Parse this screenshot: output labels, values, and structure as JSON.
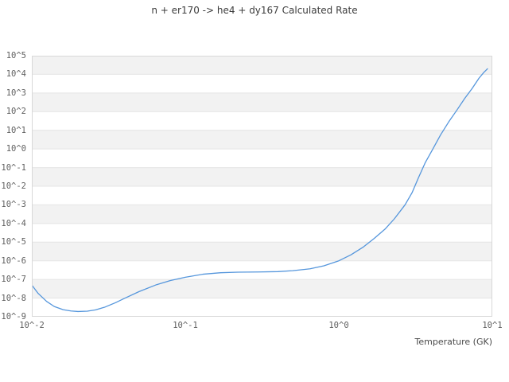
{
  "title": "n + er170 -> he4 + dy167 Calculated Rate",
  "x_axis": {
    "label": "Temperature (GK)",
    "ticks": [
      "10^-2",
      "10^-1",
      "10^0",
      "10^1"
    ]
  },
  "y_axis": {
    "ticks": [
      "10^5",
      "10^4",
      "10^3",
      "10^2",
      "10^1",
      "10^0",
      "10^-1",
      "10^-2",
      "10^-3",
      "10^-4",
      "10^-5",
      "10^-6",
      "10^-7",
      "10^-8",
      "10^-9"
    ]
  },
  "colors": {
    "line": "#5596dc",
    "band": "#f2f2f2",
    "grid": "#e4e4e4",
    "border": "#d8d8d8",
    "tick_text": "#606060",
    "title_text": "#3c3c3c"
  },
  "chart_data": {
    "type": "line",
    "title": "n + er170 -> he4 + dy167 Calculated Rate",
    "xlabel": "Temperature (GK)",
    "ylabel": "",
    "xscale": "log",
    "yscale": "log",
    "xlim": [
      0.01,
      10
    ],
    "ylim": [
      1e-09,
      100000.0
    ],
    "grid": "horizontal-decades, alternating shaded bands",
    "legend": "none",
    "series_name": "calculated rate",
    "x_gk": [
      0.01,
      0.011,
      0.0125,
      0.014,
      0.016,
      0.018,
      0.02,
      0.023,
      0.026,
      0.03,
      0.035,
      0.04,
      0.05,
      0.065,
      0.08,
      0.1,
      0.13,
      0.17,
      0.22,
      0.3,
      0.4,
      0.5,
      0.65,
      0.8,
      1.0,
      1.2,
      1.45,
      1.7,
      2.0,
      2.3,
      2.7,
      3.0,
      3.3,
      3.65,
      4.1,
      4.6,
      5.2,
      5.9,
      6.6,
      7.4,
      8.2,
      8.8,
      9.3
    ],
    "log10_rate": [
      -7.3,
      -7.75,
      -8.18,
      -8.45,
      -8.62,
      -8.69,
      -8.72,
      -8.7,
      -8.63,
      -8.48,
      -8.25,
      -8.02,
      -7.65,
      -7.28,
      -7.06,
      -6.88,
      -6.72,
      -6.64,
      -6.61,
      -6.6,
      -6.58,
      -6.53,
      -6.43,
      -6.27,
      -6.0,
      -5.68,
      -5.25,
      -4.8,
      -4.3,
      -3.75,
      -3.0,
      -2.35,
      -1.55,
      -0.75,
      0.0,
      0.75,
      1.45,
      2.1,
      2.7,
      3.25,
      3.8,
      4.1,
      4.3
    ]
  }
}
